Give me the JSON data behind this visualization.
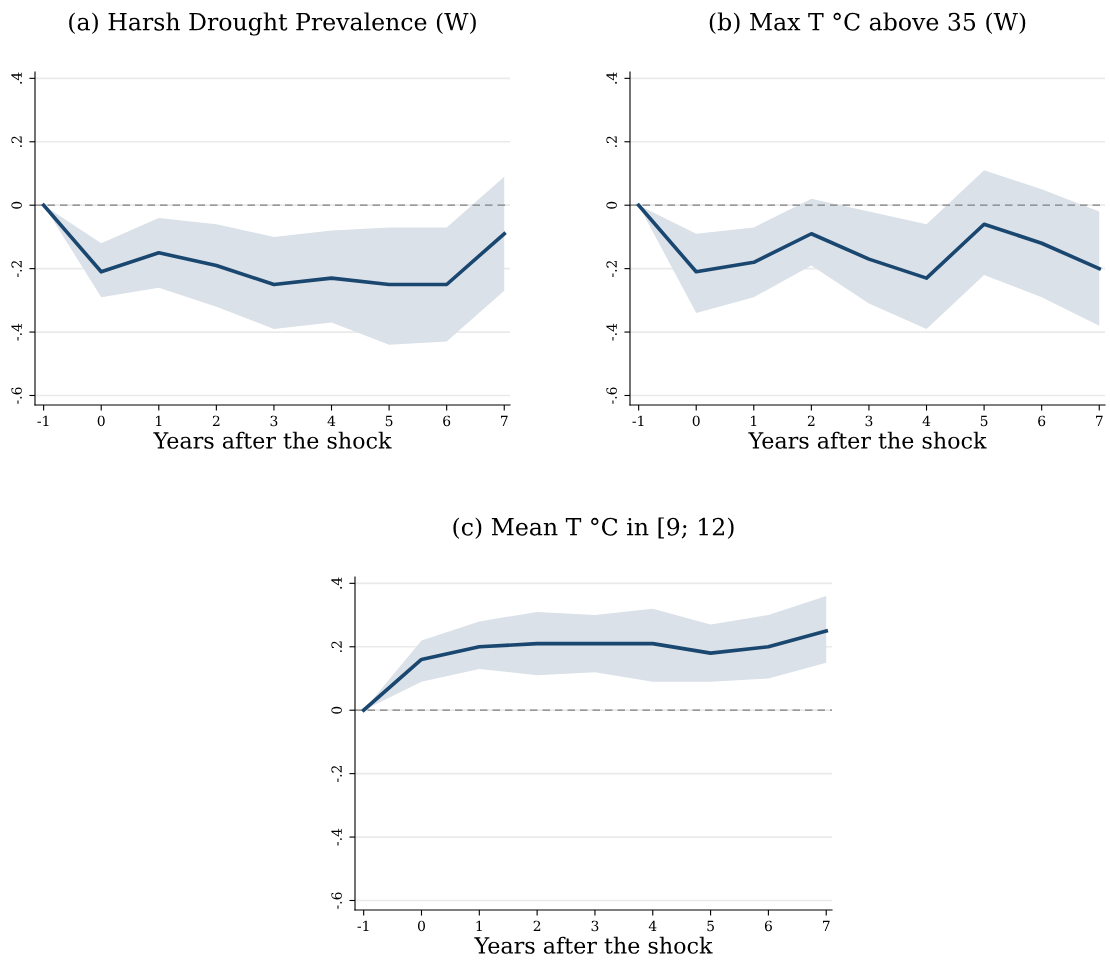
{
  "chart_data": [
    {
      "type": "line",
      "title": "(a) Harsh Drought Prevalence (W)",
      "xlabel": "Years after the shock",
      "x": [
        -1,
        0,
        1,
        2,
        3,
        4,
        5,
        6,
        7
      ],
      "series": [
        {
          "color": "#1a476f",
          "values": [
            0,
            -0.21,
            -0.15,
            -0.19,
            -0.25,
            -0.23,
            -0.25,
            -0.25,
            -0.09
          ],
          "lower": [
            0,
            -0.29,
            -0.26,
            -0.32,
            -0.39,
            -0.37,
            -0.44,
            -0.43,
            -0.27
          ],
          "upper": [
            0,
            -0.12,
            -0.04,
            -0.06,
            -0.1,
            -0.08,
            -0.07,
            -0.07,
            0.09
          ]
        }
      ],
      "xlim": [
        -1.15,
        7.1
      ],
      "xticks": [
        -1,
        0,
        1,
        2,
        3,
        4,
        5,
        6,
        7
      ],
      "ylim": [
        -0.63,
        0.42
      ],
      "yticks": [
        {
          "value": -0.6,
          "label": "-.6"
        },
        {
          "value": -0.4,
          "label": "-.4"
        },
        {
          "value": -0.2,
          "label": "-.2"
        },
        {
          "value": 0,
          "label": "0"
        },
        {
          "value": 0.2,
          "label": ".2"
        },
        {
          "value": 0.4,
          "label": ".4"
        }
      ],
      "grid": "y",
      "ref_lines": [
        {
          "axis": "y",
          "value": 0,
          "color": "#7f7f7f",
          "line_style": "dashed"
        }
      ]
    },
    {
      "type": "line",
      "title": "(b) Max T °C above 35 (W)",
      "xlabel": "Years after the shock",
      "x": [
        -1,
        0,
        1,
        2,
        3,
        4,
        5,
        6,
        7
      ],
      "series": [
        {
          "color": "#1a476f",
          "values": [
            0,
            -0.21,
            -0.18,
            -0.09,
            -0.17,
            -0.23,
            -0.06,
            -0.12,
            -0.2
          ],
          "lower": [
            0,
            -0.34,
            -0.29,
            -0.19,
            -0.31,
            -0.39,
            -0.22,
            -0.29,
            -0.38
          ],
          "upper": [
            0,
            -0.09,
            -0.07,
            0.02,
            -0.02,
            -0.06,
            0.11,
            0.05,
            -0.02
          ]
        }
      ],
      "xlim": [
        -1.15,
        7.1
      ],
      "xticks": [
        -1,
        0,
        1,
        2,
        3,
        4,
        5,
        6,
        7
      ],
      "ylim": [
        -0.63,
        0.42
      ],
      "yticks": [
        {
          "value": -0.6,
          "label": "-.6"
        },
        {
          "value": -0.4,
          "label": "-.4"
        },
        {
          "value": -0.2,
          "label": "-.2"
        },
        {
          "value": 0,
          "label": "0"
        },
        {
          "value": 0.2,
          "label": ".2"
        },
        {
          "value": 0.4,
          "label": ".4"
        }
      ],
      "grid": "y",
      "ref_lines": [
        {
          "axis": "y",
          "value": 0,
          "color": "#7f7f7f",
          "line_style": "dashed"
        }
      ]
    },
    {
      "type": "line",
      "title": "(c) Mean T °C in [9; 12)",
      "xlabel": "Years after the shock",
      "x": [
        -1,
        0,
        1,
        2,
        3,
        4,
        5,
        6,
        7
      ],
      "series": [
        {
          "color": "#1a476f",
          "values": [
            0,
            0.16,
            0.2,
            0.21,
            0.21,
            0.21,
            0.18,
            0.2,
            0.25
          ],
          "lower": [
            0,
            0.09,
            0.13,
            0.11,
            0.12,
            0.09,
            0.09,
            0.1,
            0.15
          ],
          "upper": [
            0,
            0.22,
            0.28,
            0.31,
            0.3,
            0.32,
            0.27,
            0.3,
            0.36
          ]
        }
      ],
      "xlim": [
        -1.15,
        7.1
      ],
      "xticks": [
        -1,
        0,
        1,
        2,
        3,
        4,
        5,
        6,
        7
      ],
      "ylim": [
        -0.63,
        0.42
      ],
      "yticks": [
        {
          "value": -0.6,
          "label": "-.6"
        },
        {
          "value": -0.4,
          "label": "-.4"
        },
        {
          "value": -0.2,
          "label": "-.2"
        },
        {
          "value": 0,
          "label": "0"
        },
        {
          "value": 0.2,
          "label": ".2"
        },
        {
          "value": 0.4,
          "label": ".4"
        }
      ],
      "grid": "y",
      "ref_lines": [
        {
          "axis": "y",
          "value": 0,
          "color": "#7f7f7f",
          "line_style": "dashed"
        }
      ]
    }
  ]
}
